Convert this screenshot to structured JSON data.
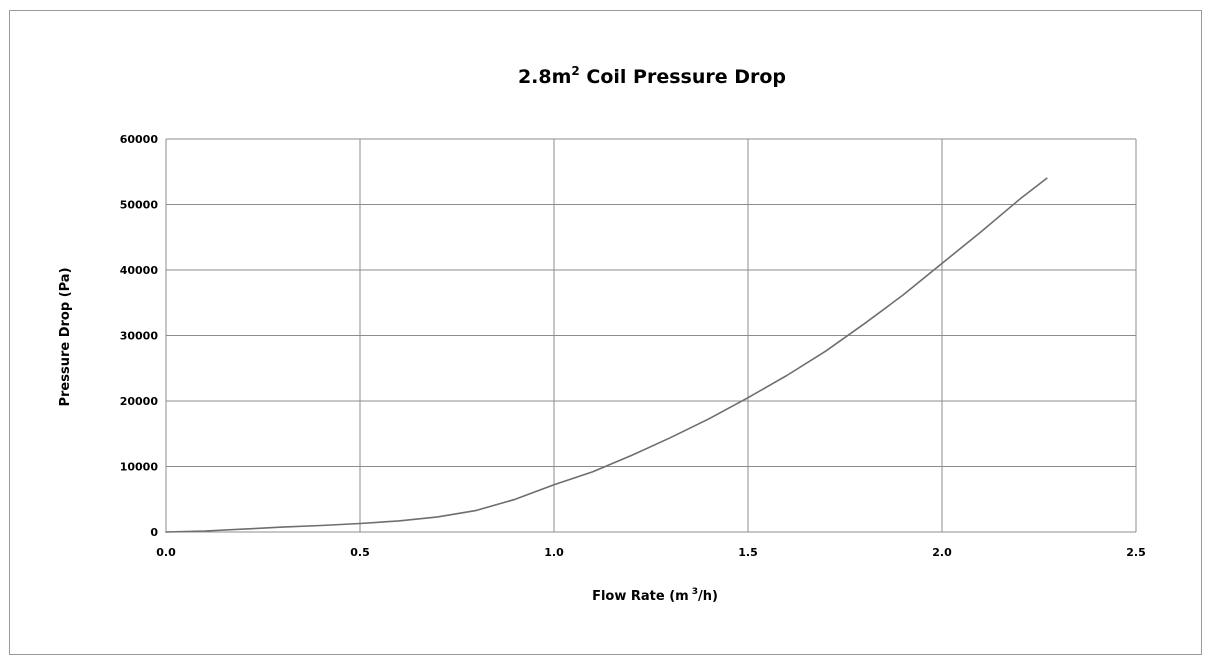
{
  "chart_data": {
    "type": "line",
    "title": "2.8m",
    "title_superscript": "2",
    "title_suffix": " Coil Pressure Drop",
    "xlabel": "Flow Rate (m",
    "xlabel_superscript": "3",
    "xlabel_suffix": "/h)",
    "ylabel": "Pressure Drop (Pa)",
    "xlim": [
      0,
      2.5
    ],
    "ylim": [
      0,
      60000
    ],
    "x_ticks": [
      "0.0",
      "0.5",
      "1.0",
      "1.5",
      "2.0",
      "2.5"
    ],
    "y_ticks": [
      "0",
      "10000",
      "20000",
      "30000",
      "40000",
      "50000",
      "60000"
    ],
    "grid": true,
    "legend": "none",
    "line_color": "#6e6e6e",
    "grid_color": "#8c8c8c",
    "series": [
      {
        "x": [
          0.0,
          0.1,
          0.2,
          0.3,
          0.4,
          0.5,
          0.6,
          0.7,
          0.8,
          0.9,
          1.0,
          1.1,
          1.2,
          1.3,
          1.4,
          1.5,
          1.6,
          1.7,
          1.8,
          1.9,
          2.0,
          2.1,
          2.2,
          2.27
        ],
        "y": [
          0,
          150,
          450,
          750,
          1000,
          1300,
          1700,
          2300,
          3300,
          5000,
          7200,
          9200,
          11700,
          14400,
          17300,
          20500,
          23900,
          27600,
          31800,
          36200,
          41000,
          45800,
          50800,
          54000
        ]
      }
    ]
  }
}
